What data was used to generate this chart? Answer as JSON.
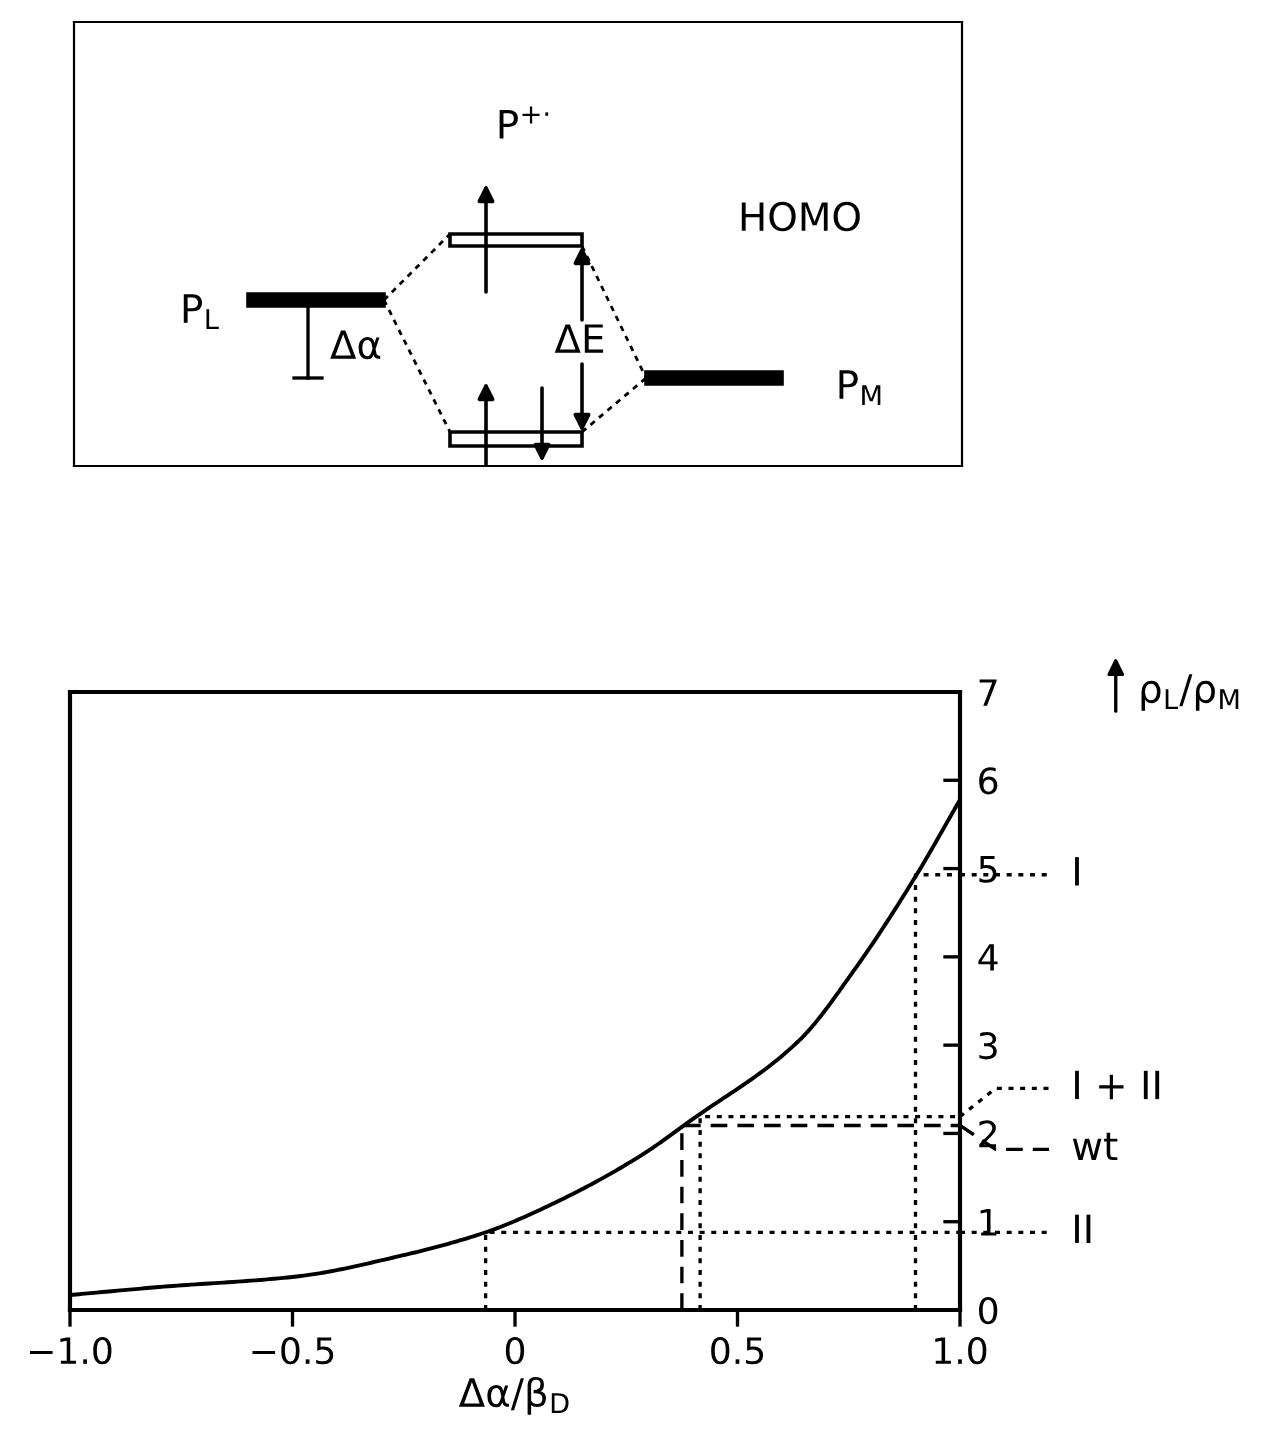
{
  "chart_data": [
    {
      "type": "other",
      "annotations": [
        "P$^{+·}$",
        "HOMO",
        "P$_{L}$",
        "Δα",
        "ΔE",
        "P$_{M}$"
      ]
    },
    {
      "type": "line",
      "xlabel": "Δα/β$_{D}$",
      "ylabel": "ρ$_{L}$/ρ$_{M}$",
      "xlim": [
        -1.0,
        1.0
      ],
      "xticks": [
        {
          "value": -1.0,
          "label": "−1.0"
        },
        {
          "value": -0.5,
          "label": "−0.5"
        },
        0,
        0.5,
        {
          "value": 1.0,
          "label": "1.0"
        }
      ],
      "ylim": [
        0,
        7
      ],
      "yticks": [
        0,
        1,
        2,
        3,
        4,
        5,
        6,
        7
      ],
      "grid": false,
      "legend": "right",
      "marker": "none",
      "series": [
        {
          "color": "#000000",
          "line_style": "solid",
          "x": [
            -1.0,
            -0.8,
            -0.49,
            -0.26,
            -0.066,
            0.1,
            0.28,
            0.396,
            0.64,
            0.765,
            0.9,
            1.0
          ],
          "values": [
            0.17,
            0.26,
            0.38,
            0.61,
            0.88,
            1.24,
            1.74,
            2.15,
            3.06,
            3.87,
            4.91,
            5.78
          ]
        },
        {
          "name": "I",
          "color": "#000000",
          "line_style": "dotted",
          "x": [
            0.9,
            0.9,
            1.0
          ],
          "values": [
            0,
            4.93,
            4.93
          ]
        },
        {
          "name": "I + II",
          "color": "#000000",
          "line_style": "dotted",
          "x": [
            0.416,
            0.416,
            1.0
          ],
          "values": [
            0,
            2.19,
            2.19
          ]
        },
        {
          "name": "wt",
          "color": "#000000",
          "line_style": "dashed",
          "x": [
            0.375,
            0.375,
            1.0
          ],
          "values": [
            0,
            2.09,
            2.09
          ]
        },
        {
          "name": "II",
          "color": "#000000",
          "line_style": "dotted",
          "x": [
            -0.066,
            -0.066,
            1.0
          ],
          "values": [
            0,
            0.88,
            0.88
          ]
        }
      ]
    }
  ]
}
